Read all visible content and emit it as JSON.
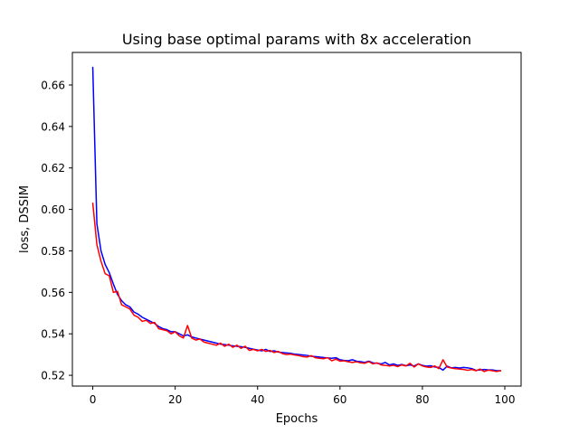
{
  "chart_data": {
    "type": "line",
    "title": "Using base optimal params with 8x acceleration",
    "xlabel": "Epochs",
    "ylabel": "loss, DSSIM",
    "xlim": [
      -4.95,
      103.95
    ],
    "ylim": [
      0.5148,
      0.6757
    ],
    "xticks": [
      0,
      20,
      40,
      60,
      80,
      100
    ],
    "yticks": [
      0.52,
      0.54,
      0.56,
      0.58,
      0.6,
      0.62,
      0.64,
      0.66
    ],
    "xtick_labels": [
      "0",
      "20",
      "40",
      "60",
      "80",
      "100"
    ],
    "ytick_labels": [
      "0.52",
      "0.54",
      "0.56",
      "0.58",
      "0.60",
      "0.62",
      "0.64",
      "0.66"
    ],
    "grid": false,
    "legend": "none",
    "x": [
      0,
      1,
      2,
      3,
      4,
      5,
      6,
      7,
      8,
      9,
      10,
      11,
      12,
      13,
      14,
      15,
      16,
      17,
      18,
      19,
      20,
      21,
      22,
      23,
      24,
      25,
      26,
      27,
      28,
      29,
      30,
      31,
      32,
      33,
      34,
      35,
      36,
      37,
      38,
      39,
      40,
      41,
      42,
      43,
      44,
      45,
      46,
      47,
      48,
      49,
      50,
      51,
      52,
      53,
      54,
      55,
      56,
      57,
      58,
      59,
      60,
      61,
      62,
      63,
      64,
      65,
      66,
      67,
      68,
      69,
      70,
      71,
      72,
      73,
      74,
      75,
      76,
      77,
      78,
      79,
      80,
      81,
      82,
      83,
      84,
      85,
      86,
      87,
      88,
      89,
      90,
      91,
      92,
      93,
      94,
      95,
      96,
      97,
      98,
      99
    ],
    "series": [
      {
        "color": "#0000ff",
        "values": [
          0.6685,
          0.593,
          0.58,
          0.5735,
          0.5695,
          0.564,
          0.559,
          0.556,
          0.554,
          0.553,
          0.5505,
          0.5495,
          0.548,
          0.547,
          0.546,
          0.545,
          0.5435,
          0.5425,
          0.542,
          0.541,
          0.541,
          0.54,
          0.539,
          0.5395,
          0.5385,
          0.538,
          0.5375,
          0.537,
          0.5365,
          0.536,
          0.5355,
          0.535,
          0.5348,
          0.5345,
          0.5342,
          0.534,
          0.5338,
          0.5335,
          0.533,
          0.5326,
          0.5322,
          0.5318,
          0.5325,
          0.5315,
          0.5318,
          0.5312,
          0.531,
          0.5308,
          0.5306,
          0.5302,
          0.53,
          0.5298,
          0.5296,
          0.5292,
          0.529,
          0.5288,
          0.5286,
          0.5284,
          0.5282,
          0.5285,
          0.5275,
          0.5272,
          0.527,
          0.5275,
          0.5268,
          0.5266,
          0.5262,
          0.5268,
          0.526,
          0.5258,
          0.5255,
          0.5262,
          0.525,
          0.5255,
          0.5248,
          0.5252,
          0.5246,
          0.525,
          0.5245,
          0.5255,
          0.5248,
          0.5244,
          0.5246,
          0.524,
          0.5238,
          0.5225,
          0.5244,
          0.5236,
          0.5238,
          0.5235,
          0.5238,
          0.5236,
          0.5232,
          0.5224,
          0.5226,
          0.5228,
          0.5226,
          0.5226,
          0.5222,
          0.5222
        ]
      },
      {
        "color": "#ff0000",
        "values": [
          0.603,
          0.583,
          0.575,
          0.569,
          0.568,
          0.56,
          0.5605,
          0.554,
          0.553,
          0.552,
          0.549,
          0.548,
          0.546,
          0.5465,
          0.545,
          0.5455,
          0.5425,
          0.542,
          0.5415,
          0.54,
          0.541,
          0.539,
          0.538,
          0.544,
          0.538,
          0.537,
          0.5375,
          0.536,
          0.5355,
          0.535,
          0.5345,
          0.5355,
          0.534,
          0.535,
          0.5335,
          0.5345,
          0.533,
          0.534,
          0.532,
          0.5325,
          0.5318,
          0.5325,
          0.5315,
          0.532,
          0.531,
          0.5315,
          0.5305,
          0.53,
          0.5302,
          0.5298,
          0.5295,
          0.529,
          0.5288,
          0.5295,
          0.5285,
          0.5282,
          0.528,
          0.5285,
          0.527,
          0.5278,
          0.5268,
          0.527,
          0.5265,
          0.5262,
          0.5265,
          0.526,
          0.5258,
          0.5266,
          0.5255,
          0.526,
          0.525,
          0.5248,
          0.5245,
          0.5248,
          0.5242,
          0.525,
          0.5245,
          0.5258,
          0.524,
          0.5255,
          0.5245,
          0.524,
          0.5238,
          0.5245,
          0.5232,
          0.5275,
          0.524,
          0.5235,
          0.5232,
          0.523,
          0.5228,
          0.5224,
          0.5228,
          0.5222,
          0.523,
          0.5218,
          0.5225,
          0.5222,
          0.5218,
          0.5222
        ]
      }
    ]
  }
}
